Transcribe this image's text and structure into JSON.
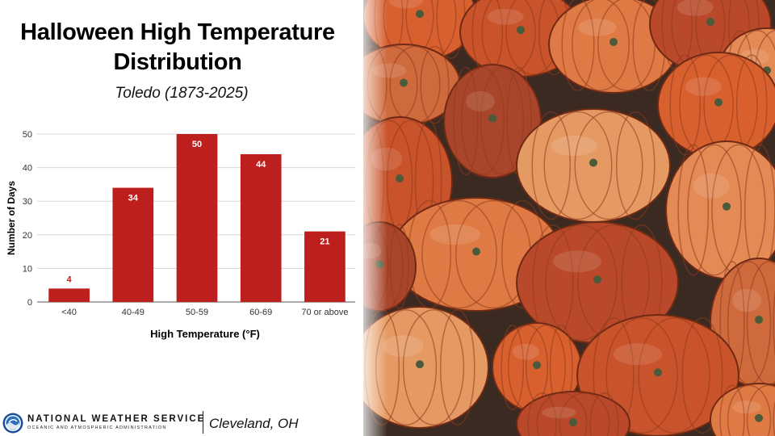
{
  "title_line1": "Halloween High Temperature",
  "title_line2": "Distribution",
  "subtitle": "Toledo (1873-2025)",
  "chart_data": {
    "type": "bar",
    "categories": [
      "<40",
      "40-49",
      "50-59",
      "60-69",
      "70 or above"
    ],
    "values": [
      4,
      34,
      50,
      44,
      21
    ],
    "xlabel": "High Temperature (°F)",
    "ylabel": "Number of Days",
    "ylim": [
      0,
      50
    ],
    "yticks": [
      0,
      10,
      20,
      30,
      40,
      50
    ],
    "grid": true,
    "legend": "none",
    "bar_color": "#bd1f1f",
    "label_colors": {
      "inside": "#ffffff",
      "outside": "#bd1f1f"
    }
  },
  "footer": {
    "org_name": "NATIONAL WEATHER SERVICE",
    "org_sub": "OCEANIC AND ATMOSPHERIC ADMINISTRATION",
    "office": "Cleveland, OH"
  },
  "background_image": "pumpkins-photo"
}
